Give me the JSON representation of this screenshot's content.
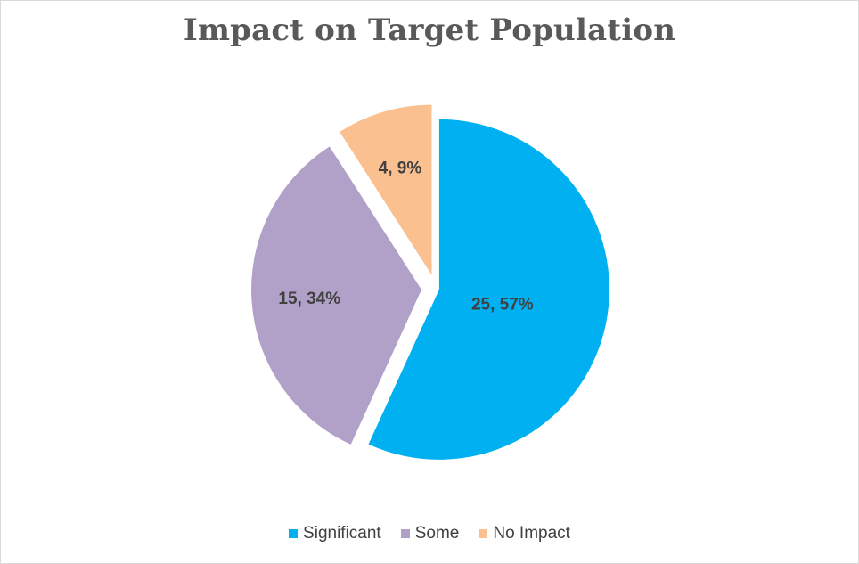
{
  "chart_data": {
    "type": "pie",
    "title": "Impact on Target Population",
    "categories": [
      "Significant",
      "Some",
      "No Impact"
    ],
    "values": [
      25,
      15,
      4
    ],
    "percent_labels": [
      "25, 57%",
      "15, 34%",
      "4, 9%"
    ],
    "colors": [
      "#00B0F0",
      "#B1A0C7",
      "#FAC090"
    ],
    "exploded": true,
    "legend_position": "bottom"
  }
}
